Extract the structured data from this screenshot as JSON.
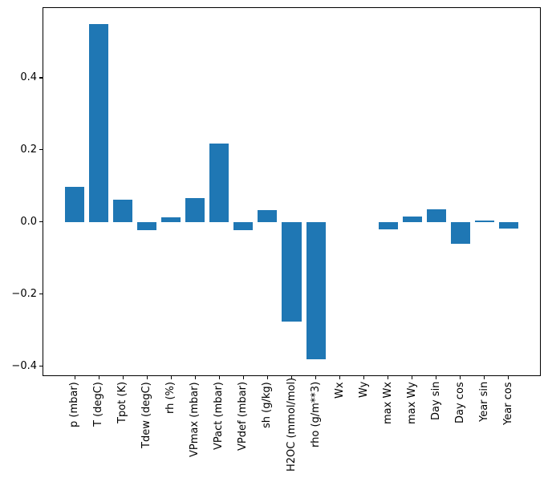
{
  "figure": {
    "background": "#ffffff"
  },
  "chart_data": {
    "type": "bar",
    "title": "",
    "xlabel": "",
    "ylabel": "",
    "grid": false,
    "legend": null,
    "bar_color": "#1f77b4",
    "axis_color": "#000000",
    "categories": [
      "p (mbar)",
      "T (degC)",
      "Tpot (K)",
      "Tdew (degC)",
      "rh (%)",
      "VPmax (mbar)",
      "VPact (mbar)",
      "VPdef (mbar)",
      "sh (g/kg)",
      "H2OC (mmol/mol)",
      "rho (g/m**3)",
      "Wx",
      "Wy",
      "max Wx",
      "max Wy",
      "Day sin",
      "Day cos",
      "Year sin",
      "Year cos"
    ],
    "values": [
      0.098,
      0.548,
      0.062,
      -0.022,
      0.013,
      0.067,
      0.217,
      -0.023,
      0.032,
      -0.276,
      -0.382,
      0.0,
      0.0,
      -0.02,
      0.015,
      0.034,
      -0.061,
      0.003,
      -0.018
    ],
    "bar_rel_width": 0.8,
    "xlim": [
      -1.34,
      19.34
    ],
    "ylim": [
      -0.4278,
      0.5956
    ],
    "yticks": [
      0.4,
      0.2,
      0.0,
      -0.2,
      -0.4
    ],
    "ytick_labels": [
      "0.4",
      "0.2",
      "0.0",
      "−0.2",
      "−0.4"
    ]
  }
}
